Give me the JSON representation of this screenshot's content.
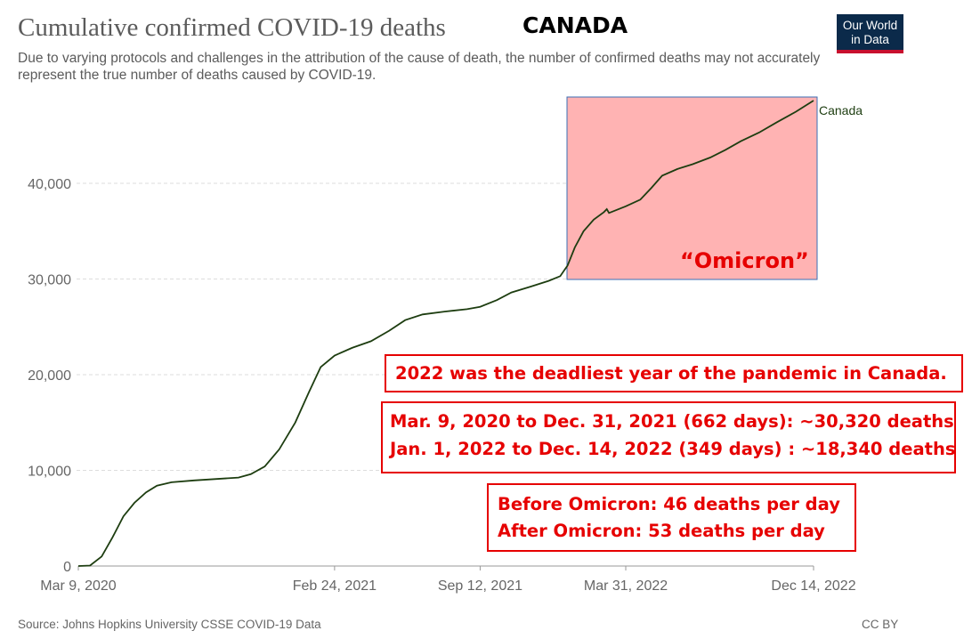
{
  "header": {
    "title": "Cumulative confirmed COVID-19 deaths",
    "country": "CANADA",
    "subtitle": "Due to varying protocols and challenges in the attribution of the cause of death, the number of confirmed deaths may not accurately represent the true number of deaths caused by COVID-19.",
    "logo_line1": "Our World",
    "logo_line2": "in Data"
  },
  "chart_data": {
    "type": "line",
    "title": "Cumulative confirmed COVID-19 deaths",
    "xlabel": "",
    "ylabel": "",
    "x_ticks": [
      "Mar 9, 2020",
      "Feb 24, 2021",
      "Sep 12, 2021",
      "Mar 31, 2022",
      "Dec 14, 2022"
    ],
    "y_ticks": [
      0,
      10000,
      20000,
      30000,
      40000
    ],
    "y_tick_labels": [
      "0",
      "10,000",
      "20,000",
      "30,000",
      "40,000"
    ],
    "ylim": [
      0,
      50000
    ],
    "grid": "horizontal dashed",
    "series": [
      {
        "name": "Canada",
        "color": "#1d3d10",
        "points": [
          [
            "2020-03-09",
            0
          ],
          [
            "2020-03-25",
            50
          ],
          [
            "2020-04-10",
            1000
          ],
          [
            "2020-04-25",
            3000
          ],
          [
            "2020-05-10",
            5200
          ],
          [
            "2020-05-25",
            6600
          ],
          [
            "2020-06-10",
            7700
          ],
          [
            "2020-06-25",
            8400
          ],
          [
            "2020-07-15",
            8750
          ],
          [
            "2020-08-15",
            8950
          ],
          [
            "2020-09-15",
            9100
          ],
          [
            "2020-10-15",
            9250
          ],
          [
            "2020-11-01",
            9600
          ],
          [
            "2020-11-20",
            10400
          ],
          [
            "2020-12-10",
            12200
          ],
          [
            "2021-01-01",
            15000
          ],
          [
            "2021-01-20",
            18200
          ],
          [
            "2021-02-05",
            20800
          ],
          [
            "2021-02-24",
            22000
          ],
          [
            "2021-03-20",
            22800
          ],
          [
            "2021-04-15",
            23500
          ],
          [
            "2021-05-10",
            24600
          ],
          [
            "2021-06-01",
            25700
          ],
          [
            "2021-06-25",
            26300
          ],
          [
            "2021-07-25",
            26600
          ],
          [
            "2021-08-25",
            26850
          ],
          [
            "2021-09-12",
            27100
          ],
          [
            "2021-10-05",
            27800
          ],
          [
            "2021-10-25",
            28600
          ],
          [
            "2021-11-20",
            29200
          ],
          [
            "2021-12-15",
            29800
          ],
          [
            "2021-12-31",
            30300
          ],
          [
            "2022-01-10",
            31400
          ],
          [
            "2022-01-20",
            33300
          ],
          [
            "2022-02-01",
            35000
          ],
          [
            "2022-02-15",
            36200
          ],
          [
            "2022-03-01",
            37000
          ],
          [
            "2022-03-05",
            37300
          ],
          [
            "2022-03-08",
            36900
          ],
          [
            "2022-03-31",
            37600
          ],
          [
            "2022-04-20",
            38300
          ],
          [
            "2022-05-05",
            39500
          ],
          [
            "2022-05-20",
            40800
          ],
          [
            "2022-06-10",
            41500
          ],
          [
            "2022-07-01",
            42000
          ],
          [
            "2022-07-25",
            42700
          ],
          [
            "2022-08-15",
            43500
          ],
          [
            "2022-09-05",
            44400
          ],
          [
            "2022-09-30",
            45300
          ],
          [
            "2022-10-25",
            46400
          ],
          [
            "2022-11-20",
            47500
          ],
          [
            "2022-12-14",
            48650
          ]
        ]
      }
    ],
    "series_label": "Canada",
    "annotations": {
      "shaded_region": {
        "from": "2022-01-01",
        "to": "2022-12-14",
        "label": "“Omicron”",
        "color": "#ffb3b3"
      }
    }
  },
  "callouts": {
    "deadliest": "2022 was the deadliest year of the pandemic in Canada.",
    "period1": "Mar. 9, 2020 to Dec. 31, 2021 (662 days): ~30,320 deaths",
    "period2": "Jan. 1, 2022 to Dec. 14, 2022 (349 days) : ~18,340 deaths",
    "before": "Before Omicron: 46 deaths per day",
    "after": "After Omicron: 53 deaths per day"
  },
  "footer": {
    "source": "Source: Johns Hopkins University CSSE COVID-19 Data",
    "license": "CC BY"
  }
}
